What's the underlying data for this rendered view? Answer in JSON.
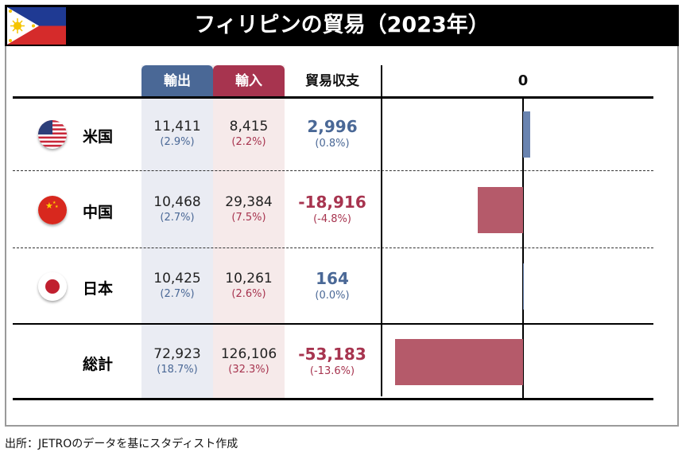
{
  "title": "フィリピンの貿易（2023年）",
  "colors": {
    "export": "#4a6896",
    "import": "#a7344f",
    "export_bg": "#eaecf3",
    "import_bg": "#f6eaea",
    "bar_positive": "#6a84b0",
    "bar_negative": "#b55a6a"
  },
  "headers": {
    "export": "輸出",
    "import": "輸入",
    "balance": "貿易収支",
    "zero": "0"
  },
  "rows": [
    {
      "name": "米国",
      "flag": "us-flag-icon",
      "export": "11,411",
      "export_pct": "(2.9%)",
      "import": "8,415",
      "import_pct": "(2.2%)",
      "balance": "2,996",
      "balance_pct": "(0.8%)",
      "balance_value": 2996
    },
    {
      "name": "中国",
      "flag": "china-flag-icon",
      "export": "10,468",
      "export_pct": "(2.7%)",
      "import": "29,384",
      "import_pct": "(7.5%)",
      "balance": "-18,916",
      "balance_pct": "(-4.8%)",
      "balance_value": -18916
    },
    {
      "name": "日本",
      "flag": "japan-flag-icon",
      "export": "10,425",
      "export_pct": "(2.7%)",
      "import": "10,261",
      "import_pct": "(2.6%)",
      "balance": "164",
      "balance_pct": "(0.0%)",
      "balance_value": 164
    },
    {
      "name": "総計",
      "flag": "",
      "export": "72,923",
      "export_pct": "(18.7%)",
      "import": "126,106",
      "import_pct": "(32.3%)",
      "balance": "-53,183",
      "balance_pct": "(-13.6%)",
      "balance_value": -53183
    }
  ],
  "footer": "出所：JETROのデータを基にスタディスト作成"
}
